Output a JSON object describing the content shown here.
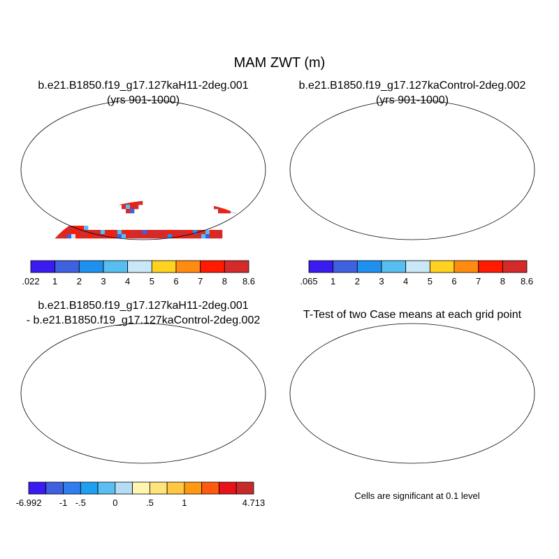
{
  "figure": {
    "title": "MAM ZWT (m)"
  },
  "chart_data": [
    {
      "type": "heatmap",
      "title": "b.e21.B1850.f19_g17.127kaH11-2deg.001",
      "subtitle": "(yrs 901-1000)",
      "colorbar": {
        "colors": [
          "#3a1cf2",
          "#3f61e0",
          "#1e90f0",
          "#56bff0",
          "#c8e8f8",
          "#ffd21f",
          "#ff8c10",
          "#ff1a00",
          "#d42a2a"
        ],
        "labels": [
          ".022",
          "1",
          "2",
          "3",
          "4",
          "5",
          "6",
          "7",
          "8",
          "8.6"
        ]
      }
    },
    {
      "type": "heatmap",
      "title": "b.e21.B1850.f19_g17.127kaControl-2deg.002",
      "subtitle": "(yrs 901-1000)",
      "colorbar": {
        "colors": [
          "#3a1cf2",
          "#3f61e0",
          "#1e90f0",
          "#56bff0",
          "#c8e8f8",
          "#ffd21f",
          "#ff8c10",
          "#ff1a00",
          "#d42a2a"
        ],
        "labels": [
          ".065",
          "1",
          "2",
          "3",
          "4",
          "5",
          "6",
          "7",
          "8",
          "8.6"
        ]
      }
    },
    {
      "type": "heatmap",
      "title": "b.e21.B1850.f19_g17.127kaH11-2deg.001",
      "subtitle": "- b.e21.B1850.f19_g17.127kaControl-2deg.002",
      "colorbar": {
        "colors": [
          "#3a1cf2",
          "#3f61e0",
          "#2f7df0",
          "#1e9ff0",
          "#5bbef0",
          "#b5dcf4",
          "#fff4b0",
          "#ffe47a",
          "#ffc840",
          "#ff9a10",
          "#ff5a10",
          "#e8121a",
          "#c82a2a"
        ],
        "labels": [
          "-6.992",
          "",
          "-1",
          "-.5",
          "",
          "0",
          "",
          ".5",
          "",
          "1",
          "",
          "",
          "",
          "4.713"
        ]
      }
    },
    {
      "type": "heatmap",
      "title": "T-Test of two Case means at each grid point",
      "note": "Cells are significant at 0.1 level",
      "significance_color": "#ff0000"
    }
  ]
}
